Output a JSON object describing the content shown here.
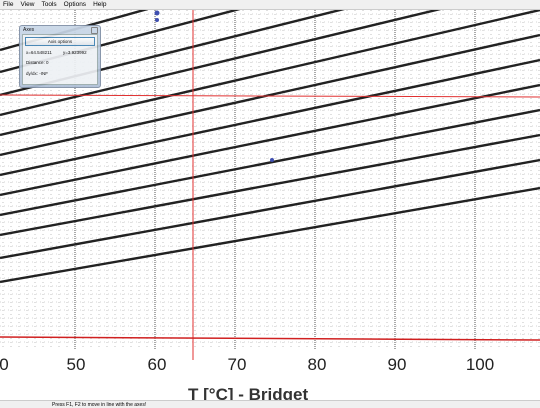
{
  "menu": [
    "File",
    "View",
    "Tools",
    "Options",
    "Help"
  ],
  "axes_window": {
    "title": "Axes",
    "button": "Axis options",
    "x_readout": "x=64.548211",
    "y_readout": "y=3.923992",
    "distance": "Distance: 0",
    "slope": "dy/dx: -INF"
  },
  "scan": {
    "tick_labels": [
      "0",
      "50",
      "60",
      "70",
      "80",
      "90",
      "100"
    ],
    "axis_title": "T [°C] - Bridget"
  },
  "status_bar": {
    "message": "Press F1, F2 to move in line with the axes!"
  }
}
